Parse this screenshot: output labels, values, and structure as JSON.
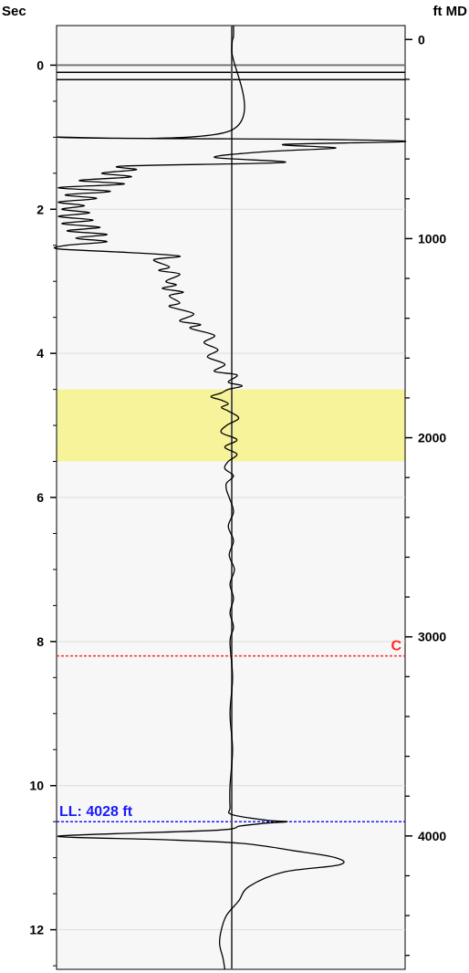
{
  "chart_data": {
    "type": "line",
    "left_axis": {
      "label": "Sec",
      "range": [
        -0.55,
        12.55
      ],
      "ticks": [
        0,
        2,
        4,
        6,
        8,
        10,
        12
      ]
    },
    "right_axis": {
      "label": "ft MD",
      "range": [
        -70,
        4670
      ],
      "ticks": [
        0,
        1000,
        2000,
        3000,
        4000
      ]
    },
    "grid": true,
    "colors": {
      "background": "#f7f7f7",
      "grid": "#dcdcdc",
      "trace": "#000000",
      "baseline": "#555555",
      "zone": "#f7f39a",
      "marker_c": "#ff2a2a",
      "marker_ll": "#1a1aff"
    },
    "zone": {
      "from_sec": 4.5,
      "to_sec": 5.5
    },
    "top_lines_sec": [
      0.0,
      0.1,
      0.2
    ],
    "markers": [
      {
        "label": "C",
        "sec": 8.2,
        "color": "#ff2a2a",
        "label_position": "right"
      },
      {
        "label": "LL: 4028 ft",
        "sec": 10.5,
        "color": "#1a1aff",
        "label_position": "left"
      }
    ],
    "trace": {
      "baseline": 0,
      "range": [
        -1,
        1
      ],
      "points": [
        [
          -0.55,
          0.01
        ],
        [
          -0.4,
          0.01
        ],
        [
          -0.2,
          0.0
        ],
        [
          0.9,
          0.0
        ],
        [
          1.0,
          -1.0
        ],
        [
          1.03,
          0.5
        ],
        [
          1.06,
          1.0
        ],
        [
          1.1,
          0.3
        ],
        [
          1.15,
          0.6
        ],
        [
          1.2,
          0.2
        ],
        [
          1.28,
          -0.1
        ],
        [
          1.35,
          0.3
        ],
        [
          1.4,
          -0.62
        ],
        [
          1.45,
          -0.55
        ],
        [
          1.5,
          -0.75
        ],
        [
          1.55,
          -0.58
        ],
        [
          1.6,
          -0.88
        ],
        [
          1.65,
          -0.62
        ],
        [
          1.7,
          -1.0
        ],
        [
          1.75,
          -0.7
        ],
        [
          1.8,
          -0.96
        ],
        [
          1.85,
          -0.78
        ],
        [
          1.9,
          -1.0
        ],
        [
          1.95,
          -0.85
        ],
        [
          2.0,
          -0.98
        ],
        [
          2.05,
          -0.82
        ],
        [
          2.1,
          -1.0
        ],
        [
          2.15,
          -0.8
        ],
        [
          2.2,
          -0.98
        ],
        [
          2.25,
          -0.76
        ],
        [
          2.3,
          -0.95
        ],
        [
          2.35,
          -0.72
        ],
        [
          2.4,
          -0.9
        ],
        [
          2.45,
          -0.72
        ],
        [
          2.5,
          -0.95
        ],
        [
          2.55,
          -1.0
        ],
        [
          2.6,
          -0.6
        ],
        [
          2.65,
          -0.3
        ],
        [
          2.7,
          -0.45
        ],
        [
          2.8,
          -0.36
        ],
        [
          2.85,
          -0.42
        ],
        [
          2.9,
          -0.3
        ],
        [
          3.0,
          -0.38
        ],
        [
          3.05,
          -0.32
        ],
        [
          3.1,
          -0.4
        ],
        [
          3.15,
          -0.28
        ],
        [
          3.2,
          -0.36
        ],
        [
          3.3,
          -0.3
        ],
        [
          3.35,
          -0.36
        ],
        [
          3.45,
          -0.22
        ],
        [
          3.55,
          -0.3
        ],
        [
          3.6,
          -0.18
        ],
        [
          3.65,
          -0.24
        ],
        [
          3.75,
          -0.1
        ],
        [
          3.85,
          -0.16
        ],
        [
          3.95,
          -0.08
        ],
        [
          4.05,
          -0.14
        ],
        [
          4.15,
          -0.04
        ],
        [
          4.25,
          -0.1
        ],
        [
          4.3,
          0.03
        ],
        [
          4.4,
          -0.02
        ],
        [
          4.45,
          0.06
        ],
        [
          4.5,
          -0.02
        ],
        [
          4.55,
          -0.06
        ],
        [
          4.6,
          -0.12
        ],
        [
          4.65,
          -0.06
        ],
        [
          4.7,
          -0.02
        ],
        [
          4.75,
          -0.06
        ],
        [
          4.8,
          -0.02
        ],
        [
          4.9,
          0.04
        ],
        [
          5.0,
          -0.03
        ],
        [
          5.1,
          -0.06
        ],
        [
          5.2,
          0.03
        ],
        [
          5.3,
          -0.04
        ],
        [
          5.4,
          0.03
        ],
        [
          5.5,
          -0.02
        ],
        [
          5.6,
          -0.04
        ],
        [
          5.7,
          0.01
        ],
        [
          5.8,
          -0.03
        ],
        [
          5.9,
          -0.03
        ],
        [
          6.0,
          -0.015
        ],
        [
          6.2,
          0.01
        ],
        [
          6.4,
          -0.02
        ],
        [
          6.6,
          0.01
        ],
        [
          6.8,
          -0.015
        ],
        [
          7.0,
          0.015
        ],
        [
          7.2,
          -0.01
        ],
        [
          7.4,
          0.01
        ],
        [
          7.6,
          -0.01
        ],
        [
          7.8,
          0.01
        ],
        [
          8.0,
          -0.01
        ],
        [
          8.5,
          0.005
        ],
        [
          9.0,
          -0.01
        ],
        [
          9.5,
          0.005
        ],
        [
          10.0,
          -0.01
        ],
        [
          10.3,
          -0.01
        ],
        [
          10.4,
          0.0
        ],
        [
          10.48,
          0.2
        ],
        [
          10.5,
          0.32
        ],
        [
          10.52,
          0.2
        ],
        [
          10.56,
          0.05
        ],
        [
          10.62,
          -0.1
        ],
        [
          10.7,
          -1.0
        ],
        [
          10.75,
          -0.4
        ],
        [
          10.8,
          0.05
        ],
        [
          10.9,
          0.35
        ],
        [
          11.0,
          0.6
        ],
        [
          11.1,
          0.62
        ],
        [
          11.2,
          0.3
        ],
        [
          11.4,
          0.1
        ],
        [
          11.6,
          0.04
        ],
        [
          11.8,
          -0.03
        ],
        [
          12.0,
          -0.06
        ],
        [
          12.2,
          -0.07
        ],
        [
          12.4,
          -0.05
        ],
        [
          12.55,
          -0.04
        ]
      ]
    }
  }
}
